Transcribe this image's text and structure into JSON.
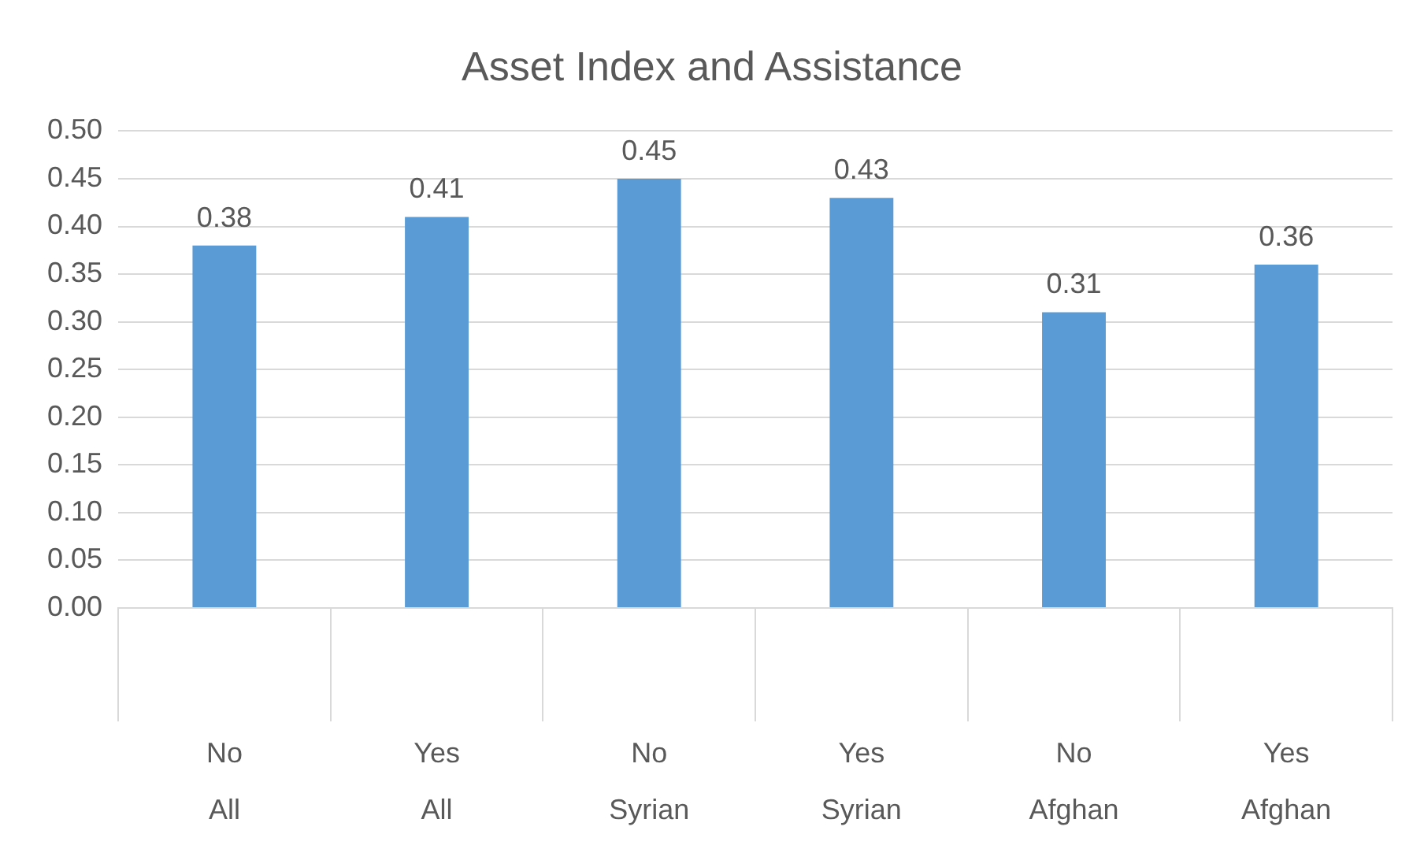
{
  "chart_data": {
    "type": "bar",
    "title": "Asset Index and Assistance",
    "categories": [
      "No\nAll",
      "Yes\nAll",
      "No\nSyrian",
      "Yes\nSyrian",
      "No\nAfghan",
      "Yes\nAfghan"
    ],
    "values": [
      0.38,
      0.41,
      0.45,
      0.43,
      0.31,
      0.36
    ],
    "color": "#5b9bd5",
    "ylim": [
      0,
      0.5
    ],
    "yticks": [
      {
        "value": 0,
        "label": "0.00"
      },
      0.05,
      {
        "value": 0.1,
        "label": "0.10"
      },
      0.15,
      {
        "value": 0.2,
        "label": "0.20"
      },
      0.25,
      {
        "value": 0.3,
        "label": "0.30"
      },
      0.35,
      {
        "value": 0.4,
        "label": "0.40"
      },
      0.45,
      {
        "value": 0.5,
        "label": "0.50"
      }
    ],
    "grid": "y",
    "data_labels": true
  }
}
